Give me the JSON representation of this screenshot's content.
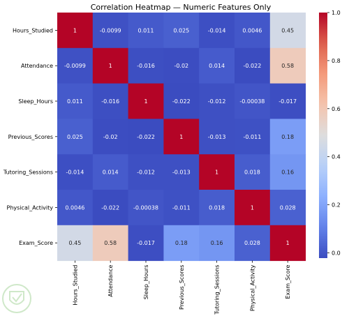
{
  "chart_data": {
    "type": "heatmap",
    "title": "Correlation Heatmap — Numeric Features Only",
    "categories": [
      "Hours_Studied",
      "Attendance",
      "Sleep_Hours",
      "Previous_Scores",
      "Tutoring_Sessions",
      "Physical_Activity",
      "Exam_Score"
    ],
    "values": [
      [
        1,
        -0.0099,
        0.011,
        0.025,
        -0.014,
        0.0046,
        0.45
      ],
      [
        -0.0099,
        1,
        -0.016,
        -0.02,
        0.014,
        -0.022,
        0.58
      ],
      [
        0.011,
        -0.016,
        1,
        -0.022,
        -0.012,
        -0.00038,
        -0.017
      ],
      [
        0.025,
        -0.02,
        -0.022,
        1,
        -0.013,
        -0.011,
        0.18
      ],
      [
        -0.014,
        0.014,
        -0.012,
        -0.013,
        1,
        0.018,
        0.16
      ],
      [
        0.0046,
        -0.022,
        -0.00038,
        -0.011,
        0.018,
        1,
        0.028
      ],
      [
        0.45,
        0.58,
        -0.017,
        0.18,
        0.16,
        0.028,
        1
      ]
    ],
    "labels": [
      [
        "1",
        "-0.0099",
        "0.011",
        "0.025",
        "-0.014",
        "0.0046",
        "0.45"
      ],
      [
        "-0.0099",
        "1",
        "-0.016",
        "-0.02",
        "0.014",
        "-0.022",
        "0.58"
      ],
      [
        "0.011",
        "-0.016",
        "1",
        "-0.022",
        "-0.012",
        "-0.00038",
        "-0.017"
      ],
      [
        "0.025",
        "-0.02",
        "-0.022",
        "1",
        "-0.013",
        "-0.011",
        "0.18"
      ],
      [
        "-0.014",
        "0.014",
        "-0.012",
        "-0.013",
        "1",
        "0.018",
        "0.16"
      ],
      [
        "0.0046",
        "-0.022",
        "-0.00038",
        "-0.011",
        "0.018",
        "1",
        "0.028"
      ],
      [
        "0.45",
        "0.58",
        "-0.017",
        "0.18",
        "0.16",
        "0.028",
        "1"
      ]
    ],
    "colormap": "coolwarm",
    "vmin": -0.022,
    "vmax": 1,
    "colorbar_ticks": [
      "0.0",
      "0.2",
      "0.4",
      "0.6",
      "0.8",
      "1.0"
    ],
    "colorbar_tick_values": [
      0,
      0.2,
      0.4,
      0.6,
      0.8,
      1.0
    ]
  }
}
